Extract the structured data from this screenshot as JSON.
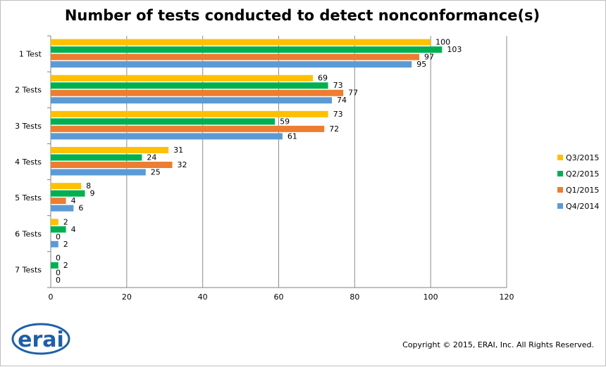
{
  "chart_data": {
    "type": "bar",
    "orientation": "horizontal",
    "title": "Number of tests conducted to detect nonconformance(s)",
    "categories": [
      "1 Test",
      "2 Tests",
      "3 Tests",
      "4 Tests",
      "5 Tests",
      "6 Tests",
      "7 Tests"
    ],
    "series": [
      {
        "name": "Q3/2015",
        "color": "#FFC000",
        "values": [
          100,
          69,
          73,
          31,
          8,
          2,
          0
        ]
      },
      {
        "name": "Q2/2015",
        "color": "#00B050",
        "values": [
          103,
          73,
          59,
          24,
          9,
          4,
          2
        ]
      },
      {
        "name": "Q1/2015",
        "color": "#ED7D31",
        "values": [
          97,
          77,
          72,
          32,
          4,
          0,
          0
        ]
      },
      {
        "name": "Q4/2014",
        "color": "#5B9BD5",
        "values": [
          95,
          74,
          61,
          25,
          6,
          2,
          0
        ]
      }
    ],
    "xlim": [
      0,
      120
    ],
    "xticks": [
      0,
      20,
      40,
      60,
      80,
      100,
      120
    ],
    "grid": true,
    "legend_position": "right"
  },
  "footer": {
    "logo_text": "erai",
    "copyright": "Copyright © 2015, ERAI, Inc.  All Rights Reserved."
  }
}
